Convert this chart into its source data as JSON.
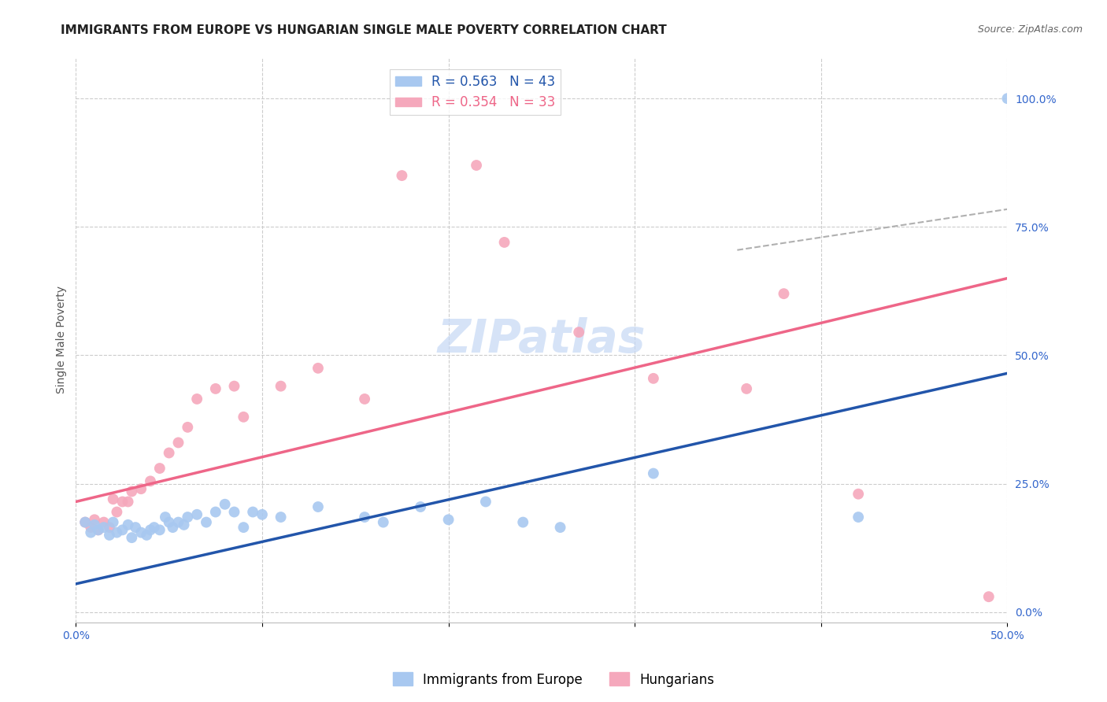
{
  "title": "IMMIGRANTS FROM EUROPE VS HUNGARIAN SINGLE MALE POVERTY CORRELATION CHART",
  "source": "Source: ZipAtlas.com",
  "ylabel": "Single Male Poverty",
  "xlim": [
    0.0,
    0.5
  ],
  "ylim": [
    -0.02,
    1.08
  ],
  "xtick_positions": [
    0.0,
    0.1,
    0.2,
    0.3,
    0.4,
    0.5
  ],
  "xtick_labels": [
    "0.0%",
    "",
    "",
    "",
    "",
    "50.0%"
  ],
  "ytick_positions_right": [
    0.0,
    0.25,
    0.5,
    0.75,
    1.0
  ],
  "ytick_labels_right": [
    "0.0%",
    "25.0%",
    "50.0%",
    "75.0%",
    "100.0%"
  ],
  "blue_R": 0.563,
  "blue_N": 43,
  "pink_R": 0.354,
  "pink_N": 33,
  "blue_color": "#A8C8F0",
  "pink_color": "#F5A8BC",
  "blue_line_color": "#2255AA",
  "pink_line_color": "#EE6688",
  "blue_legend_label": "Immigrants from Europe",
  "pink_legend_label": "Hungarians",
  "background_color": "#FFFFFF",
  "grid_color": "#CCCCCC",
  "blue_scatter_x": [
    0.005,
    0.008,
    0.01,
    0.012,
    0.015,
    0.018,
    0.02,
    0.022,
    0.025,
    0.028,
    0.03,
    0.032,
    0.035,
    0.038,
    0.04,
    0.042,
    0.045,
    0.048,
    0.05,
    0.052,
    0.055,
    0.058,
    0.06,
    0.065,
    0.07,
    0.075,
    0.08,
    0.085,
    0.09,
    0.095,
    0.1,
    0.11,
    0.13,
    0.155,
    0.165,
    0.185,
    0.2,
    0.22,
    0.24,
    0.26,
    0.31,
    0.42,
    0.5
  ],
  "blue_scatter_y": [
    0.175,
    0.155,
    0.17,
    0.16,
    0.165,
    0.15,
    0.175,
    0.155,
    0.16,
    0.17,
    0.145,
    0.165,
    0.155,
    0.15,
    0.16,
    0.165,
    0.16,
    0.185,
    0.175,
    0.165,
    0.175,
    0.17,
    0.185,
    0.19,
    0.175,
    0.195,
    0.21,
    0.195,
    0.165,
    0.195,
    0.19,
    0.185,
    0.205,
    0.185,
    0.175,
    0.205,
    0.18,
    0.215,
    0.175,
    0.165,
    0.27,
    0.185,
    1.0
  ],
  "pink_scatter_x": [
    0.005,
    0.008,
    0.01,
    0.012,
    0.015,
    0.018,
    0.02,
    0.022,
    0.025,
    0.028,
    0.03,
    0.035,
    0.04,
    0.045,
    0.05,
    0.055,
    0.06,
    0.065,
    0.075,
    0.085,
    0.09,
    0.11,
    0.13,
    0.155,
    0.175,
    0.215,
    0.23,
    0.27,
    0.31,
    0.36,
    0.38,
    0.42,
    0.49
  ],
  "pink_scatter_y": [
    0.175,
    0.165,
    0.18,
    0.16,
    0.175,
    0.165,
    0.22,
    0.195,
    0.215,
    0.215,
    0.235,
    0.24,
    0.255,
    0.28,
    0.31,
    0.33,
    0.36,
    0.415,
    0.435,
    0.44,
    0.38,
    0.44,
    0.475,
    0.415,
    0.85,
    0.87,
    0.72,
    0.545,
    0.455,
    0.435,
    0.62,
    0.23,
    0.03
  ],
  "blue_line_x": [
    0.0,
    0.5
  ],
  "blue_line_y": [
    0.055,
    0.465
  ],
  "pink_line_x": [
    0.0,
    0.5
  ],
  "pink_line_y": [
    0.215,
    0.65
  ],
  "diag_line_x": [
    0.355,
    0.51
  ],
  "diag_line_y": [
    0.705,
    0.79
  ],
  "watermark_text": "ZIPatlas",
  "watermark_color": "#C5D8F5",
  "title_fontsize": 11,
  "axis_label_fontsize": 10,
  "tick_fontsize": 10,
  "legend_fontsize": 12,
  "scatter_size": 100
}
